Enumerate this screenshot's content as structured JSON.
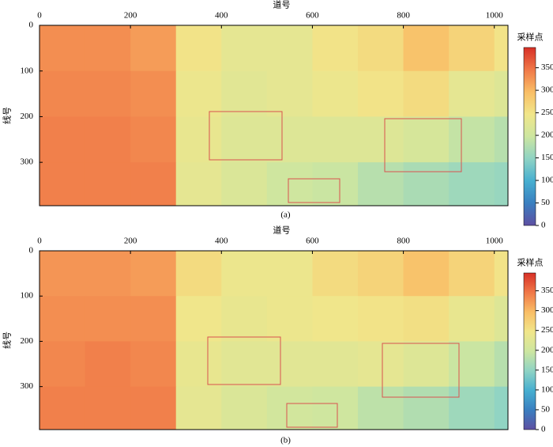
{
  "chart_data": [
    {
      "type": "heatmap",
      "caption": "(a)",
      "x_label": "道号",
      "y_label": "线号",
      "colorbar_label": "采样点",
      "xlim": [
        0,
        1030
      ],
      "ylim": [
        0,
        395
      ],
      "clim": [
        0,
        395
      ],
      "xticks": [
        0,
        200,
        400,
        600,
        800,
        1000
      ],
      "yticks": [
        0,
        100,
        200,
        300
      ],
      "cticks": [
        0,
        50,
        100,
        150,
        200,
        250,
        300,
        350
      ],
      "xedges": [
        0,
        100,
        200,
        300,
        400,
        500,
        600,
        700,
        800,
        900,
        1000,
        1030
      ],
      "yedges": [
        0,
        100,
        200,
        300,
        395
      ],
      "colormap": [
        "#5e4fa2",
        "#3a7fc0",
        "#47afd0",
        "#8fd3c4",
        "#cde6a0",
        "#f1e68a",
        "#f9be66",
        "#f07848",
        "#d73027"
      ],
      "values": [
        [
          330,
          330,
          320,
          250,
          230,
          230,
          250,
          260,
          290,
          270,
          250
        ],
        [
          335,
          335,
          330,
          240,
          225,
          230,
          240,
          250,
          260,
          230,
          220
        ],
        [
          340,
          340,
          335,
          235,
          220,
          220,
          220,
          220,
          210,
          190,
          180
        ],
        [
          340,
          340,
          340,
          230,
          215,
          200,
          195,
          180,
          170,
          160,
          155
        ]
      ]
    },
    {
      "type": "heatmap",
      "caption": "(b)",
      "x_label": "道号",
      "y_label": "线号",
      "colorbar_label": "采样点",
      "xlim": [
        0,
        1030
      ],
      "ylim": [
        0,
        395
      ],
      "clim": [
        0,
        395
      ],
      "xticks": [
        0,
        200,
        400,
        600,
        800,
        1000
      ],
      "yticks": [
        0,
        100,
        200,
        300
      ],
      "cticks": [
        0,
        50,
        100,
        150,
        200,
        250,
        300,
        350
      ],
      "xedges": [
        0,
        100,
        200,
        300,
        400,
        500,
        600,
        700,
        800,
        900,
        1000,
        1030
      ],
      "yedges": [
        0,
        100,
        200,
        300,
        395
      ],
      "colormap": [
        "#5e4fa2",
        "#3a7fc0",
        "#47afd0",
        "#8fd3c4",
        "#cde6a0",
        "#f1e68a",
        "#f9be66",
        "#f07848",
        "#d73027"
      ],
      "values": [
        [
          325,
          325,
          320,
          260,
          240,
          240,
          260,
          270,
          290,
          270,
          250
        ],
        [
          330,
          330,
          330,
          245,
          235,
          240,
          245,
          250,
          255,
          235,
          220
        ],
        [
          335,
          340,
          335,
          235,
          225,
          225,
          225,
          230,
          220,
          195,
          180
        ],
        [
          340,
          340,
          340,
          230,
          215,
          205,
          200,
          185,
          175,
          160,
          150
        ]
      ]
    }
  ]
}
